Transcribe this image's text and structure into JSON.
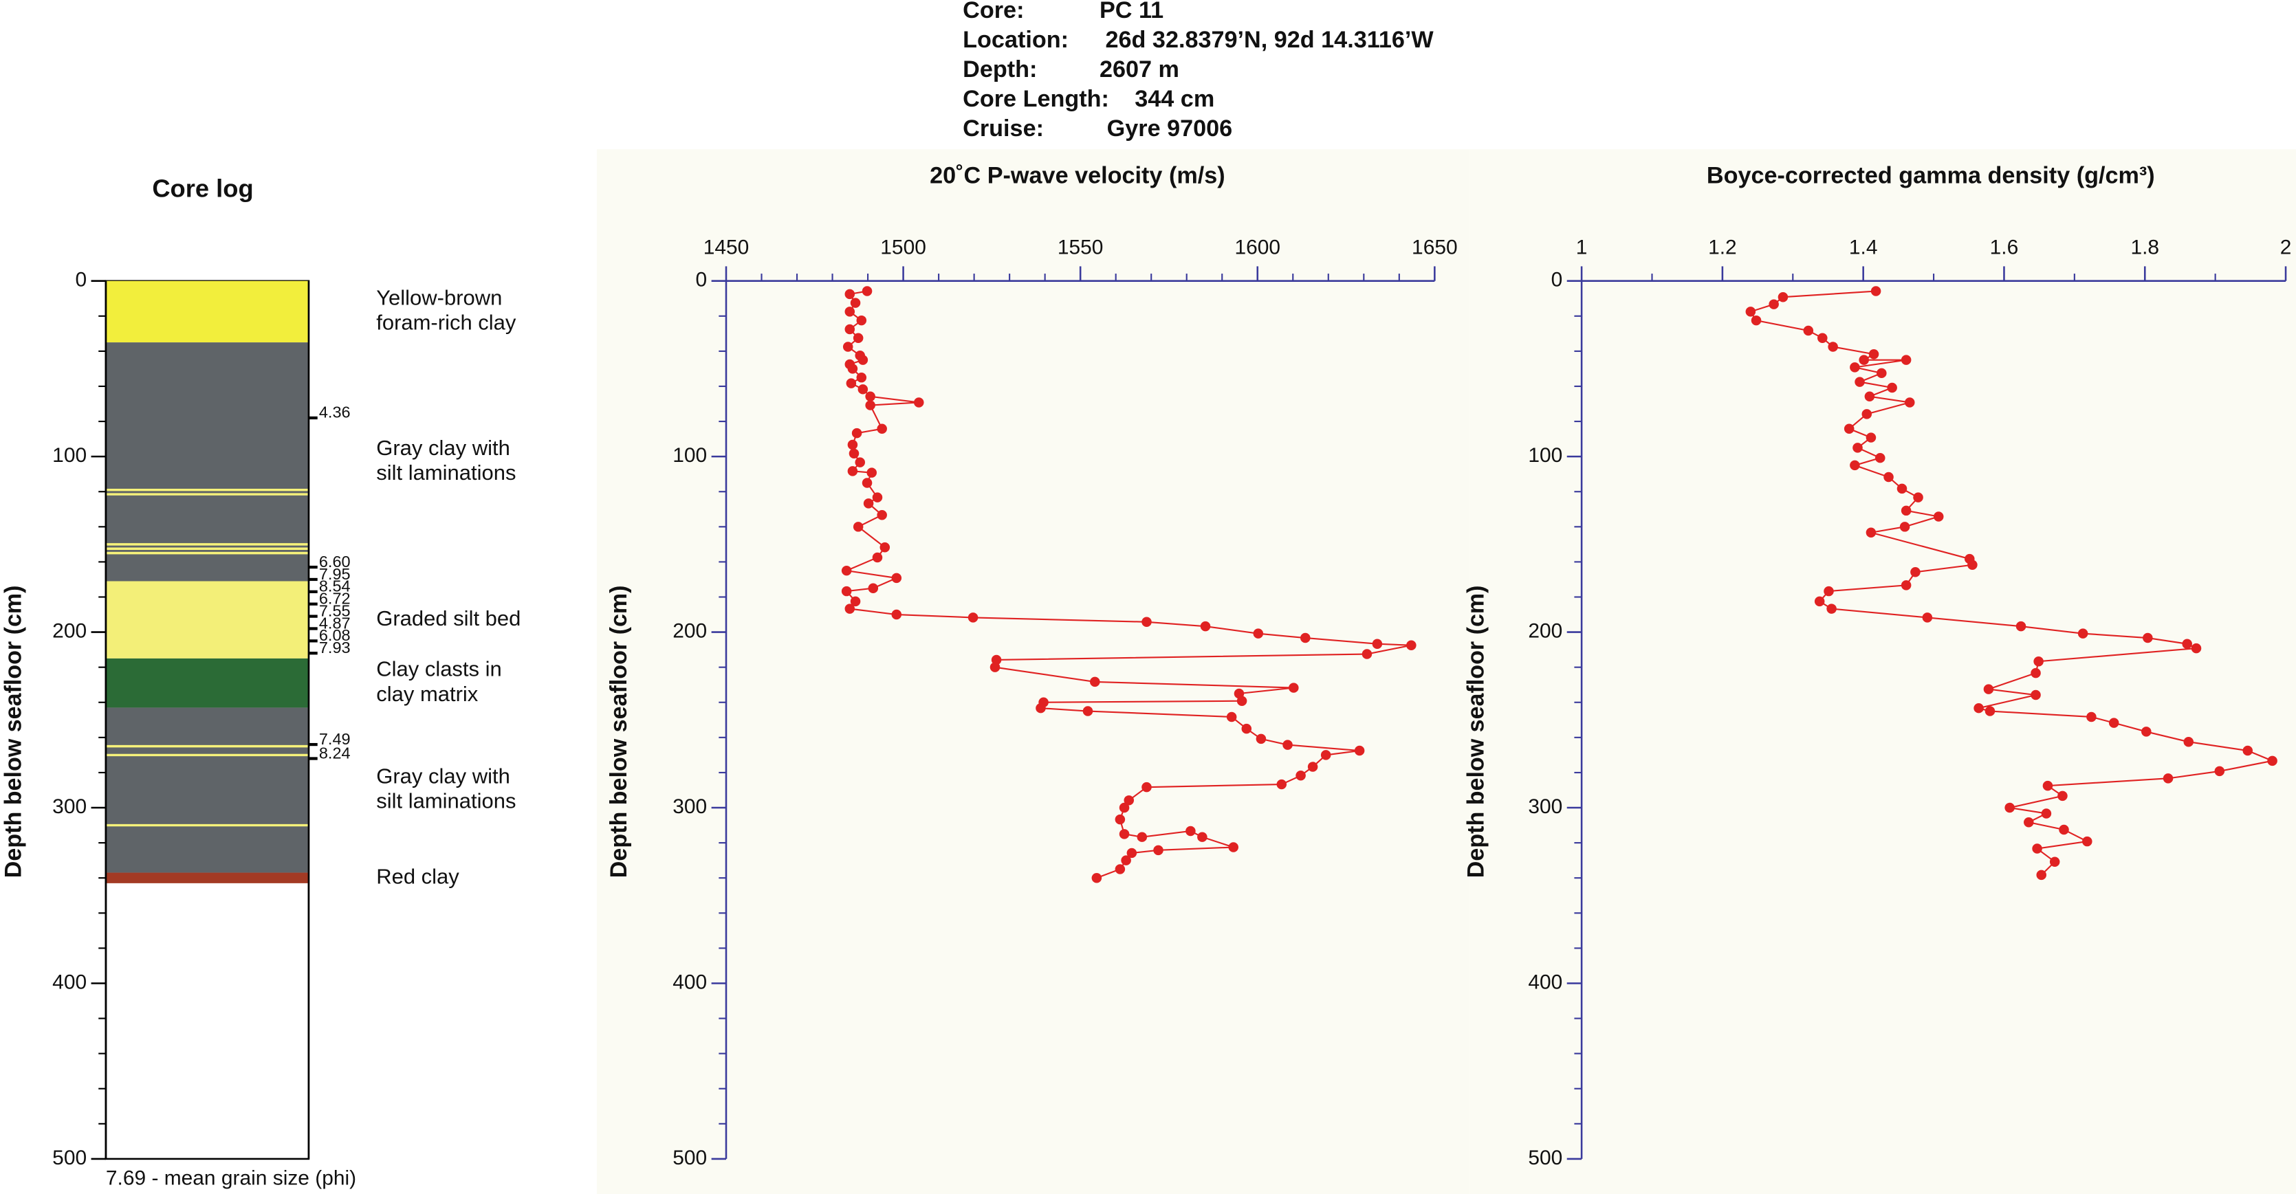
{
  "header": {
    "rows": [
      [
        "Core:",
        "PC 11"
      ],
      [
        "Location:",
        "26d 32.8379’N, 92d 14.3116’W"
      ],
      [
        "Depth:",
        "2607 m"
      ],
      [
        "Core Length:",
        "344 cm"
      ],
      [
        "Cruise:",
        "Gyre 97006"
      ]
    ]
  },
  "chart_data": [
    {
      "type": "core_log",
      "title": "Core log",
      "y_label": "Depth below seafloor (cm)",
      "footnote": "7.69 - mean grain size (phi)",
      "ylim": [
        0,
        500
      ],
      "y_reversed": true,
      "yticks": [
        0,
        100,
        200,
        300,
        400,
        500
      ],
      "yticks_minor": [
        20,
        40,
        60,
        80,
        120,
        140,
        160,
        180,
        220,
        240,
        260,
        280,
        320,
        340,
        360,
        380,
        420,
        440,
        460,
        480
      ],
      "layers": [
        {
          "top": 0,
          "bottom": 35,
          "color": "#f2ee3c",
          "label": [
            "Yellow-brown",
            "foram-rich clay"
          ]
        },
        {
          "top": 35,
          "bottom": 171,
          "color": "#5f6468",
          "label": [
            "Gray clay with",
            "silt laminations"
          ]
        },
        {
          "top": 171,
          "bottom": 215,
          "color": "#f3ef78",
          "label": [
            "Graded silt bed"
          ]
        },
        {
          "top": 215,
          "bottom": 243,
          "color": "#2b6b36",
          "label": [
            "Clay clasts in",
            "clay matrix"
          ]
        },
        {
          "top": 243,
          "bottom": 337,
          "color": "#5f6468",
          "label": [
            "Gray clay with",
            "silt laminations"
          ]
        },
        {
          "top": 337,
          "bottom": 343,
          "color": "#a33a24",
          "label": [
            "Red clay"
          ]
        }
      ],
      "laminations": [
        119,
        121.5,
        150,
        152.5,
        155,
        265,
        270,
        310
      ],
      "lamination_color": "#f6f27a",
      "grain_size": {
        "depths": [
          78,
          163,
          170,
          177,
          184,
          191,
          198,
          205,
          212,
          264,
          272
        ],
        "values": [
          4.36,
          6.6,
          7.95,
          8.54,
          6.72,
          7.55,
          4.87,
          6.08,
          7.93,
          7.49,
          8.24
        ],
        "value_labels": [
          "4.36",
          "6.60",
          "7.95",
          "8.54",
          "6.72",
          "7.55",
          "4.87",
          "6.08",
          "7.93",
          "7.49",
          "8.24"
        ]
      }
    },
    {
      "type": "profile",
      "title": "20˚C P-wave velocity (m/s)",
      "y_label": "Depth below seafloor (cm)",
      "color": "#e02222",
      "axis_color": "#3a3a9c",
      "xlim": [
        1450,
        1650
      ],
      "xticks": [
        1450,
        1500,
        1550,
        1600,
        1650
      ],
      "xticks_minor": [
        1460,
        1470,
        1480,
        1490,
        1510,
        1520,
        1530,
        1540,
        1560,
        1570,
        1580,
        1590,
        1610,
        1620,
        1630,
        1640
      ],
      "ylim": [
        0,
        500
      ],
      "y_reversed": true,
      "yticks": [
        0,
        100,
        200,
        300,
        400,
        500
      ],
      "yticks_minor": [
        20,
        40,
        60,
        80,
        120,
        140,
        160,
        180,
        220,
        240,
        260,
        280,
        320,
        340,
        360,
        380,
        420,
        440,
        460,
        480
      ],
      "x": [
        1489.8,
        1484.9,
        1486.5,
        1484.9,
        1488.2,
        1484.9,
        1487.3,
        1484.4,
        1487.8,
        1488.6,
        1484.9,
        1485.7,
        1488.2,
        1485.3,
        1488.6,
        1490.7,
        1504.4,
        1490.7,
        1494.0,
        1486.9,
        1485.7,
        1486.1,
        1487.8,
        1485.7,
        1491.1,
        1489.8,
        1492.7,
        1490.2,
        1494.0,
        1487.3,
        1494.8,
        1492.7,
        1484.0,
        1498.1,
        1491.5,
        1484.0,
        1486.5,
        1484.9,
        1498.1,
        1519.7,
        1568.7,
        1585.3,
        1600.2,
        1613.5,
        1633.8,
        1643.4,
        1630.9,
        1526.3,
        1525.9,
        1554.1,
        1610.2,
        1594.8,
        1595.6,
        1539.6,
        1538.8,
        1552.1,
        1592.7,
        1596.9,
        1601.0,
        1608.5,
        1628.8,
        1619.3,
        1615.6,
        1612.2,
        1606.8,
        1568.7,
        1563.7,
        1562.4,
        1561.2,
        1562.4,
        1567.4,
        1581.1,
        1584.4,
        1593.2,
        1572.0,
        1564.5,
        1562.9,
        1561.2,
        1554.6
      ],
      "values": [
        5.8,
        7.5,
        12.5,
        17.5,
        22.5,
        27.5,
        32.5,
        37.5,
        42.5,
        45,
        47.5,
        50,
        55,
        58.3,
        61.7,
        65.8,
        69.2,
        70.8,
        84.2,
        86.7,
        93.3,
        98.3,
        103.3,
        108.3,
        109.2,
        115,
        123.3,
        126.7,
        133.3,
        140,
        151.7,
        157.5,
        165,
        169.2,
        175,
        176.7,
        182.5,
        186.7,
        190,
        191.7,
        194.2,
        196.7,
        200.8,
        203.3,
        206.7,
        207.5,
        212.5,
        215.8,
        220,
        228.3,
        231.7,
        235,
        239.2,
        240,
        243.3,
        245,
        248.3,
        255,
        260.8,
        264.2,
        267.5,
        270,
        276.7,
        281.7,
        286.7,
        288.3,
        295.8,
        300,
        306.7,
        315,
        316.7,
        313.3,
        316.7,
        322.5,
        324.2,
        325.8,
        330,
        335,
        340
      ]
    },
    {
      "type": "profile",
      "title": "Boyce-corrected gamma density (g/cm³)",
      "y_label": "Depth below seafloor (cm)",
      "color": "#e02222",
      "axis_color": "#3a3a9c",
      "xlim": [
        1,
        2
      ],
      "xticks": [
        1,
        1.2,
        1.4,
        1.6,
        1.8,
        2
      ],
      "xticks_minor": [
        1.1,
        1.3,
        1.5,
        1.7,
        1.9
      ],
      "ylim": [
        0,
        500
      ],
      "y_reversed": true,
      "yticks": [
        0,
        100,
        200,
        300,
        400,
        500
      ],
      "yticks_minor": [
        20,
        40,
        60,
        80,
        120,
        140,
        160,
        180,
        220,
        240,
        260,
        280,
        320,
        340,
        360,
        380,
        420,
        440,
        460,
        480
      ],
      "x": [
        1.418,
        1.286,
        1.273,
        1.24,
        1.248,
        1.322,
        1.342,
        1.357,
        1.415,
        1.401,
        1.461,
        1.388,
        1.426,
        1.395,
        1.441,
        1.409,
        1.466,
        1.405,
        1.38,
        1.411,
        1.392,
        1.424,
        1.388,
        1.436,
        1.455,
        1.478,
        1.461,
        1.507,
        1.459,
        1.411,
        1.551,
        1.555,
        1.474,
        1.461,
        1.351,
        1.338,
        1.355,
        1.491,
        1.624,
        1.712,
        1.804,
        1.86,
        1.873,
        1.649,
        1.645,
        1.578,
        1.645,
        1.564,
        1.58,
        1.724,
        1.756,
        1.802,
        1.862,
        1.946,
        1.981,
        1.906,
        1.833,
        1.662,
        1.683,
        1.608,
        1.66,
        1.635,
        1.685,
        1.718,
        1.647,
        1.672,
        1.653
      ],
      "values": [
        5.8,
        9.2,
        13.3,
        17.5,
        22.5,
        28.3,
        32.5,
        37.5,
        41.7,
        45,
        45,
        49.2,
        52.5,
        57.5,
        60.8,
        65.8,
        69.2,
        75.8,
        84.2,
        89.2,
        95,
        100.8,
        105,
        111.7,
        118.3,
        123.3,
        130.8,
        134.2,
        140,
        143.3,
        158.3,
        161.7,
        165.8,
        173.3,
        176.7,
        182.5,
        186.7,
        191.7,
        196.7,
        200.8,
        203.3,
        206.7,
        209.2,
        216.7,
        223.3,
        232.5,
        235.8,
        243.3,
        245,
        248.3,
        251.7,
        256.7,
        262.5,
        267.5,
        273.3,
        279.2,
        283.3,
        287.5,
        293.3,
        300,
        303.3,
        308.3,
        312.5,
        319.2,
        323.3,
        330.8,
        338.3
      ]
    }
  ]
}
